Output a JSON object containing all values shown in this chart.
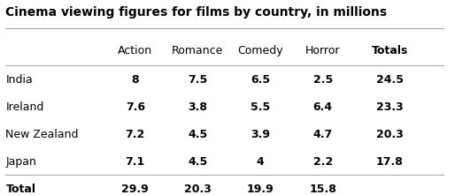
{
  "title": "Cinema viewing figures for films by country, in millions",
  "col_headers": [
    "Action",
    "Romance",
    "Comedy",
    "Horror",
    "Totals"
  ],
  "row_labels": [
    "India",
    "Ireland",
    "New Zealand",
    "Japan",
    "Total"
  ],
  "data": [
    [
      "8",
      "7.5",
      "6.5",
      "2.5",
      "24.5"
    ],
    [
      "7.6",
      "3.8",
      "5.5",
      "6.4",
      "23.3"
    ],
    [
      "7.2",
      "4.5",
      "3.9",
      "4.7",
      "20.3"
    ],
    [
      "7.1",
      "4.5",
      "4",
      "2.2",
      "17.8"
    ],
    [
      "29.9",
      "20.3",
      "19.9",
      "15.8",
      ""
    ]
  ],
  "bg_color": "#ffffff",
  "text_color": "#000000",
  "header_line_color": "#aaaaaa",
  "title_fontsize": 10,
  "header_fontsize": 9,
  "cell_fontsize": 9,
  "fig_width": 5.31,
  "fig_height": 2.21
}
